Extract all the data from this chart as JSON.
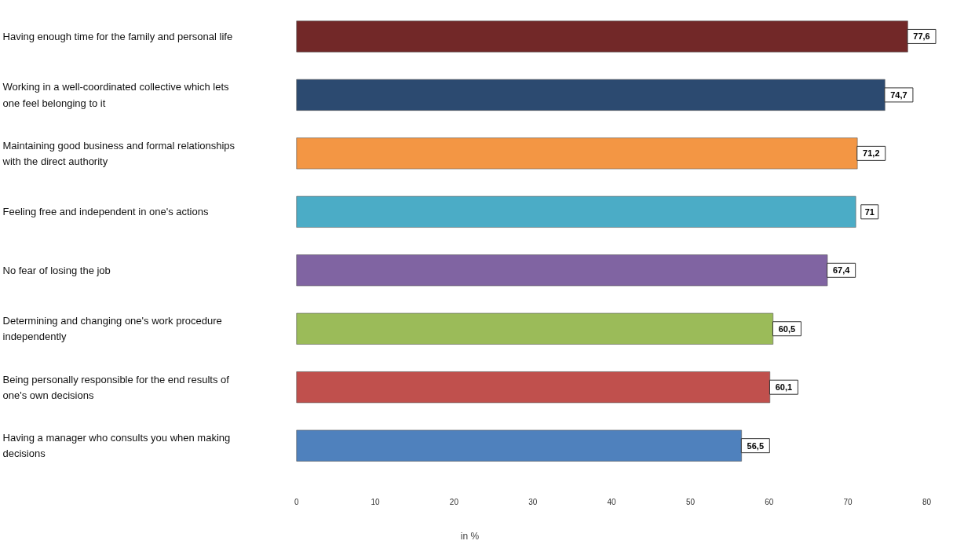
{
  "chart_data": {
    "type": "bar",
    "orientation": "horizontal",
    "xlabel": "in %",
    "categories": [
      "Having enough time for the family and personal life",
      "Working in a well-coordinated collective which lets one feel belonging to it",
      "Maintaining good business and formal relationships with the direct authority",
      "Feeling free and independent in one's actions",
      "No fear of losing the job",
      "Determining and changing one's work procedure independently",
      "Being personally responsible for the end results of one's own decisions",
      "Having a manager who consults you when making decisions"
    ],
    "values": [
      77.6,
      74.7,
      71.2,
      71,
      67.4,
      60.5,
      60.1,
      56.5
    ],
    "value_labels": [
      "77,6",
      "74,7",
      "71,2",
      "71",
      "67,4",
      "60,5",
      "60,1",
      "56,5"
    ],
    "colors": [
      "#722828",
      "#2c4a70",
      "#f39644",
      "#4bacc6",
      "#8064a2",
      "#9bbb59",
      "#c0504d",
      "#4f81bd"
    ],
    "xlim": [
      0,
      80
    ],
    "xticks": [
      0,
      10,
      20,
      30,
      40,
      50,
      60,
      70,
      80
    ],
    "grid": false
  }
}
